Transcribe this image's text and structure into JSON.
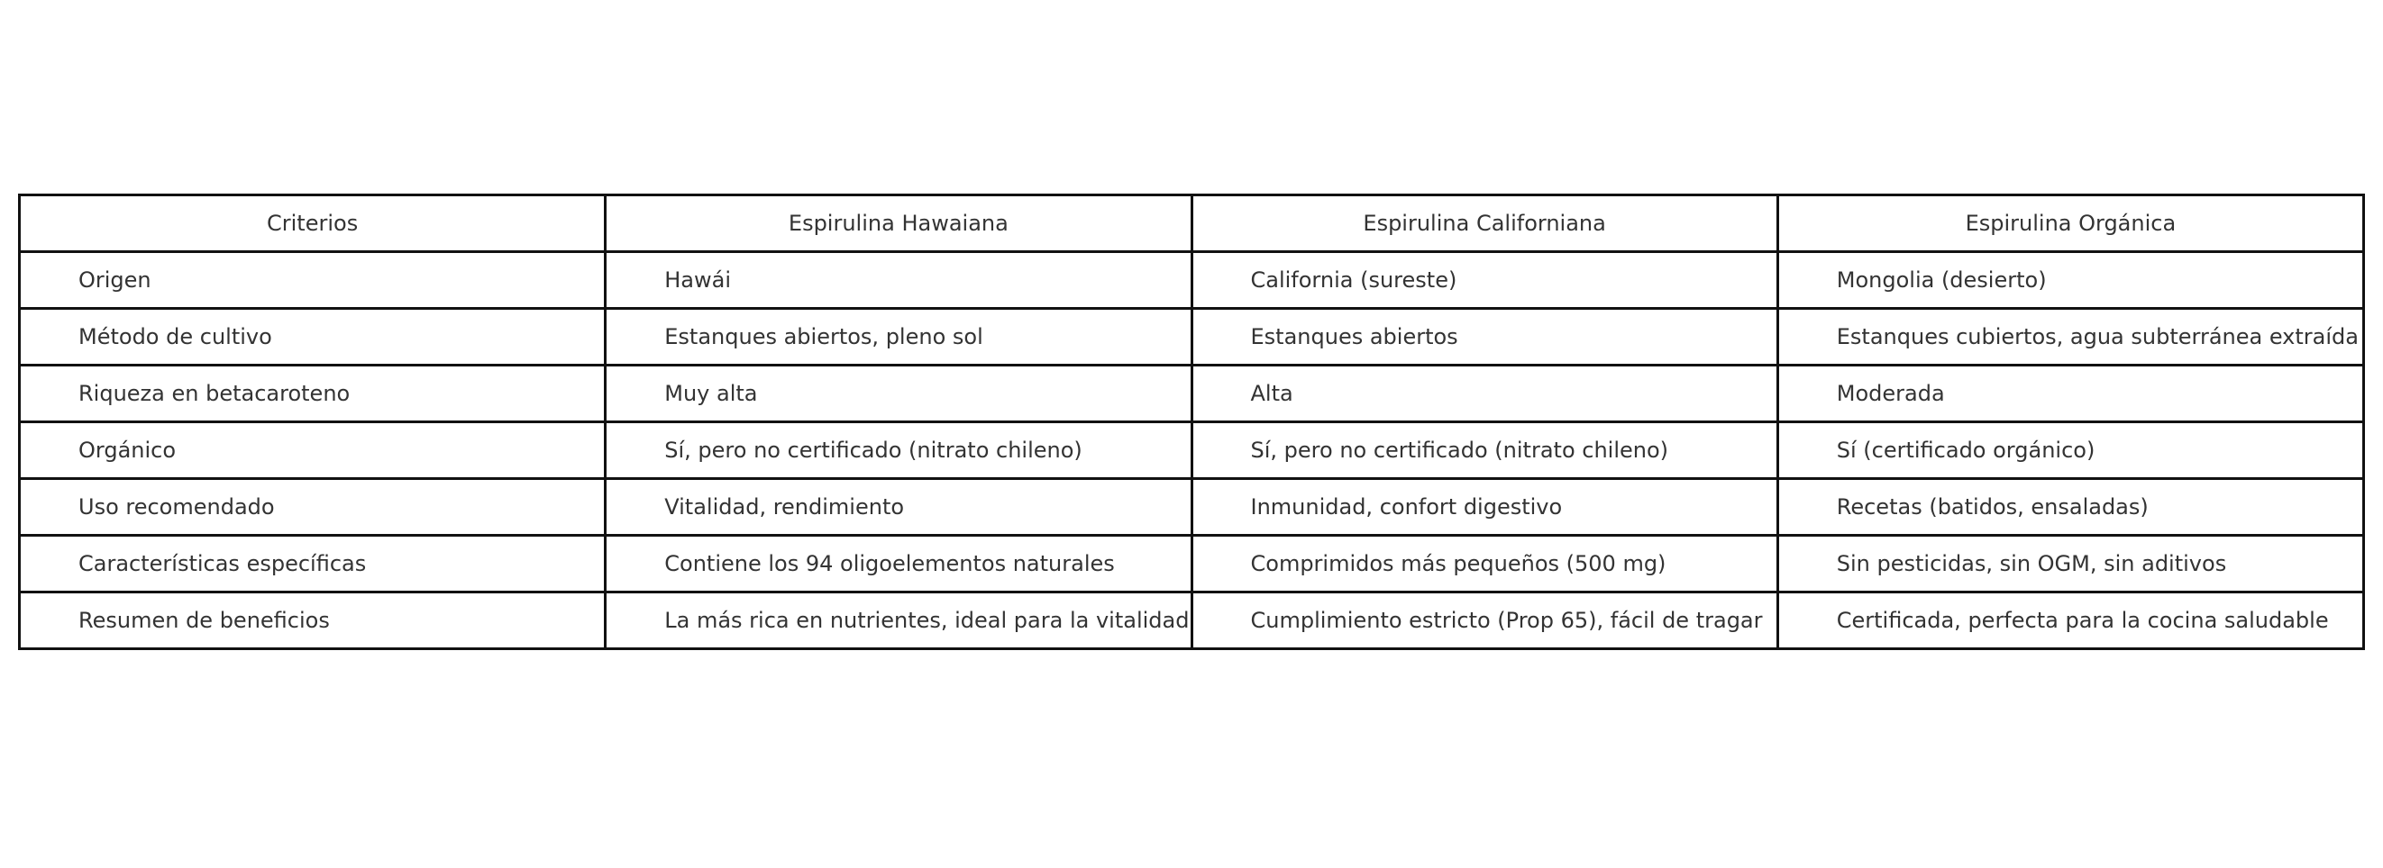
{
  "table": {
    "header": [
      "Criterios",
      "Espirulina Hawaiana",
      "Espirulina Californiana",
      "Espirulina Orgánica"
    ],
    "rows": [
      [
        "Origen",
        "Hawái",
        "California (sureste)",
        "Mongolia (desierto)"
      ],
      [
        "Método de cultivo",
        "Estanques abiertos, pleno sol",
        "Estanques abiertos",
        "Estanques cubiertos, agua subterránea extraída"
      ],
      [
        "Riqueza en betacaroteno",
        "Muy alta",
        "Alta",
        "Moderada"
      ],
      [
        "Orgánico",
        "Sí, pero no certificado (nitrato chileno)",
        "Sí, pero no certificado (nitrato chileno)",
        "Sí (certificado orgánico)"
      ],
      [
        "Uso recomendado",
        "Vitalidad, rendimiento",
        "Inmunidad, confort digestivo",
        "Recetas (batidos, ensaladas)"
      ],
      [
        "Características específicas",
        "Contiene los 94 oligoelementos naturales",
        "Comprimidos más pequeños (500 mg)",
        "Sin pesticidas, sin OGM, sin aditivos"
      ],
      [
        "Resumen de beneficios",
        "La más rica en nutrientes, ideal para la vitalidad",
        "Cumplimiento estricto (Prop 65), fácil de tragar",
        "Certificada, perfecta para la cocina saludable"
      ]
    ]
  }
}
